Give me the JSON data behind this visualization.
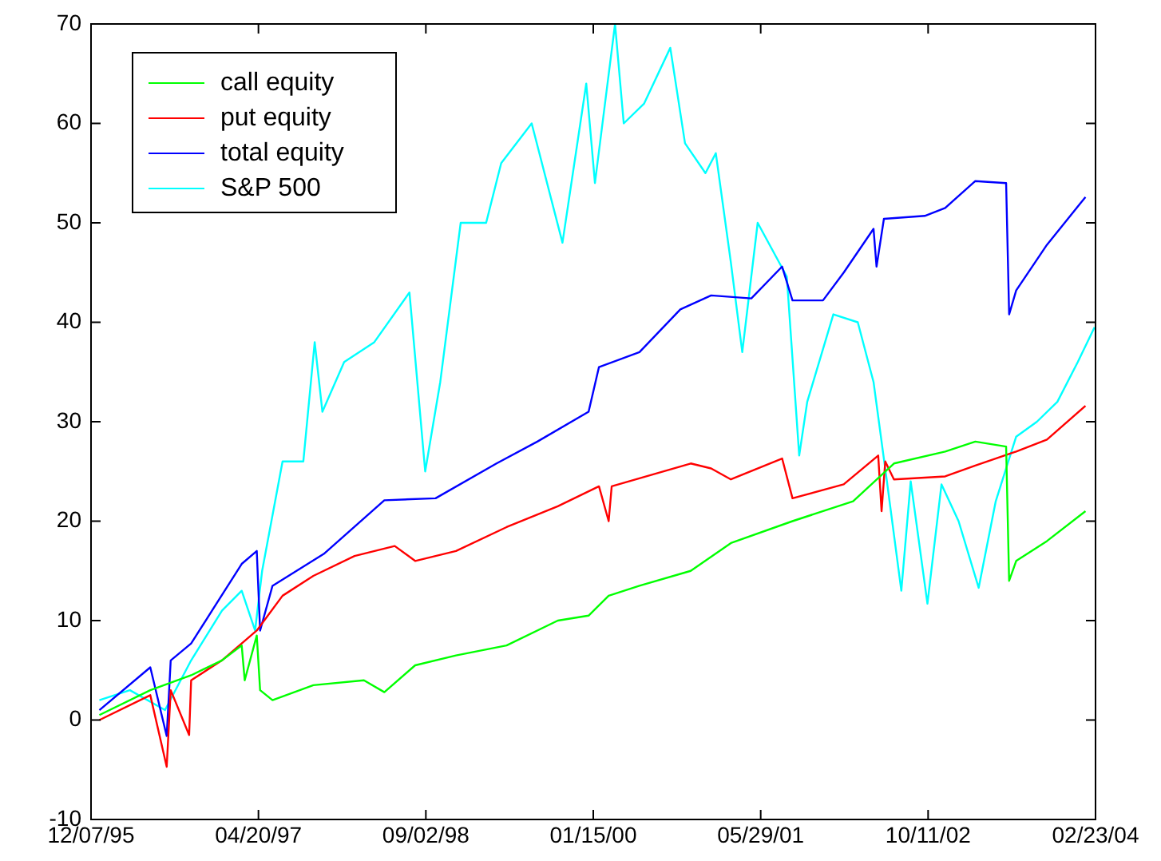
{
  "chart_data": {
    "type": "line",
    "legend": "top left",
    "grid": false,
    "marker": "none",
    "line_style": "solid",
    "xlim": [
      "1995-12-07",
      "2004-02-23"
    ],
    "xticks": [
      {
        "value": "1995-12-07",
        "label": "12/07/95"
      },
      {
        "value": "1997-04-20",
        "label": "04/20/97"
      },
      {
        "value": "1998-09-02",
        "label": "09/02/98"
      },
      {
        "value": "2000-01-15",
        "label": "01/15/00"
      },
      {
        "value": "2001-05-29",
        "label": "05/29/01"
      },
      {
        "value": "2002-10-11",
        "label": "10/11/02"
      },
      {
        "value": "2004-02-23",
        "label": "02/23/04"
      }
    ],
    "ylim": [
      -10,
      70
    ],
    "yticks": [
      -10,
      0,
      10,
      20,
      30,
      40,
      50,
      60,
      70
    ],
    "series": [
      {
        "name": "call equity",
        "color": "#00ff00",
        "x": [
          "1996-01-01",
          "1996-06-01",
          "1996-10-01",
          "1997-01-01",
          "1997-03-01",
          "1997-03-10",
          "1997-04-15",
          "1997-04-25",
          "1997-06-01",
          "1997-10-01",
          "1998-03-01",
          "1998-05-01",
          "1998-08-01",
          "1998-12-01",
          "1999-05-01",
          "1999-10-01",
          "2000-01-01",
          "2000-03-01",
          "2000-06-01",
          "2000-11-01",
          "2001-03-01",
          "2001-09-01",
          "2002-03-01",
          "2002-07-01",
          "2002-12-01",
          "2003-03-01",
          "2003-06-01",
          "2003-06-10",
          "2003-07-01",
          "2003-10-01",
          "2004-01-24"
        ],
        "values": [
          0.5,
          3,
          4.5,
          6,
          7.5,
          4,
          8.5,
          3,
          2,
          3.5,
          4,
          2.8,
          5.5,
          6.5,
          7.5,
          10,
          10.5,
          12.5,
          13.5,
          15,
          17.8,
          20,
          22,
          25.8,
          27,
          28,
          27.5,
          14,
          16,
          18,
          21
        ]
      },
      {
        "name": "put equity",
        "color": "#ff0000",
        "x": [
          "1996-01-01",
          "1996-06-01",
          "1996-07-20",
          "1996-08-01",
          "1996-09-25",
          "1996-10-01",
          "1997-01-01",
          "1997-04-15",
          "1997-07-01",
          "1997-10-01",
          "1998-02-01",
          "1998-06-01",
          "1998-08-01",
          "1998-12-01",
          "1999-05-01",
          "1999-10-01",
          "2000-02-01",
          "2000-03-01",
          "2000-03-10",
          "2000-11-01",
          "2001-01-01",
          "2001-03-01",
          "2001-08-01",
          "2001-09-01",
          "2002-02-01",
          "2002-05-15",
          "2002-05-25",
          "2002-06-05",
          "2002-07-01",
          "2002-12-01",
          "2003-03-01",
          "2003-07-01",
          "2003-10-01",
          "2004-01-24"
        ],
        "values": [
          0,
          2.5,
          -4.7,
          3,
          -1.5,
          4,
          6,
          9,
          12.5,
          14.5,
          16.5,
          17.5,
          16,
          17,
          19.4,
          21.5,
          23.5,
          20,
          23.5,
          25.8,
          25.3,
          24.2,
          26.3,
          22.3,
          23.7,
          26.6,
          21,
          26,
          24.2,
          24.5,
          25.6,
          27,
          28.2,
          31.6
        ]
      },
      {
        "name": "total equity",
        "color": "#0000ff",
        "x": [
          "1996-01-01",
          "1996-06-01",
          "1996-07-20",
          "1996-08-01",
          "1996-10-01",
          "1997-03-01",
          "1997-04-15",
          "1997-04-25",
          "1997-06-01",
          "1997-11-01",
          "1998-05-01",
          "1998-10-01",
          "1999-04-01",
          "1999-08-01",
          "2000-01-01",
          "2000-02-01",
          "2000-06-01",
          "2000-10-01",
          "2001-01-01",
          "2001-05-01",
          "2001-08-01",
          "2001-09-01",
          "2001-12-01",
          "2002-02-01",
          "2002-05-01",
          "2002-05-10",
          "2002-06-01",
          "2002-10-01",
          "2002-12-01",
          "2003-03-01",
          "2003-06-01",
          "2003-06-10",
          "2003-07-01",
          "2003-10-01",
          "2004-01-24"
        ],
        "values": [
          1,
          5.3,
          -1.6,
          6,
          7.7,
          15.7,
          17,
          9,
          13.5,
          16.7,
          22.1,
          22.3,
          25.8,
          28,
          31,
          35.5,
          37,
          41.3,
          42.7,
          42.4,
          45.6,
          42.2,
          42.2,
          45,
          49.4,
          45.6,
          50.4,
          50.7,
          51.5,
          54.2,
          54,
          40.8,
          43.2,
          47.8,
          52.6
        ]
      },
      {
        "name": "S&P 500",
        "color": "#00ffff",
        "x": [
          "1996-01-01",
          "1996-04-01",
          "1996-07-15",
          "1996-10-01",
          "1997-01-01",
          "1997-03-01",
          "1997-04-10",
          "1997-05-01",
          "1997-07-01",
          "1997-09-01",
          "1997-10-05",
          "1997-10-28",
          "1998-01-01",
          "1998-04-01",
          "1998-07-15",
          "1998-08-31",
          "1998-10-15",
          "1998-12-15",
          "1999-03-01",
          "1999-04-15",
          "1999-07-15",
          "1999-10-15",
          "1999-12-25",
          "2000-01-20",
          "2000-03-20",
          "2000-04-15",
          "2000-06-15",
          "2000-09-01",
          "2000-10-15",
          "2000-12-15",
          "2001-01-15",
          "2001-03-01",
          "2001-04-04",
          "2001-05-20",
          "2001-08-15",
          "2001-09-21",
          "2001-10-15",
          "2002-01-01",
          "2002-03-15",
          "2002-05-01",
          "2002-06-10",
          "2002-07-23",
          "2002-08-20",
          "2002-10-09",
          "2002-11-20",
          "2003-01-10",
          "2003-03-11",
          "2003-05-01",
          "2003-07-01",
          "2003-09-01",
          "2003-11-01",
          "2004-01-01",
          "2004-02-20"
        ],
        "values": [
          2,
          3,
          1,
          6,
          11,
          13,
          9,
          15,
          26,
          26,
          38,
          31,
          36,
          38,
          43,
          25,
          34,
          50,
          50,
          56,
          60,
          48,
          64,
          54,
          70,
          60,
          62,
          67.6,
          58,
          55,
          57,
          46,
          37,
          50,
          44.6,
          26.6,
          32,
          40.8,
          40,
          34,
          24,
          13,
          24,
          11.7,
          23.7,
          20,
          13.3,
          22,
          28.5,
          30,
          32,
          36,
          39.5
        ]
      }
    ]
  }
}
